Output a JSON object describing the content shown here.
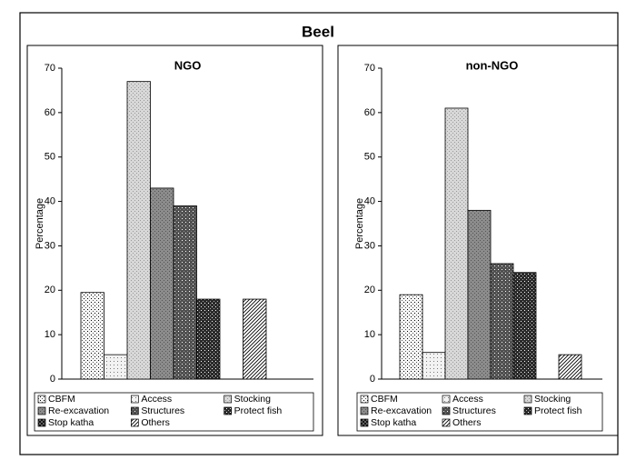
{
  "title": "Beel",
  "chart_data": [
    {
      "type": "bar",
      "title": "NGO",
      "ylabel": "Percentage",
      "ylim": [
        0,
        70
      ],
      "yticks": [
        0,
        10,
        20,
        30,
        40,
        50,
        60,
        70
      ],
      "series": [
        {
          "name": "CBFM",
          "color": "#f6f6f6",
          "values": [
            19.5
          ]
        },
        {
          "name": "Access",
          "color": "#f2f2f2",
          "values": [
            5.5
          ]
        },
        {
          "name": "Stocking",
          "color": "#d8d8d8",
          "values": [
            67
          ]
        },
        {
          "name": "Re-excavation",
          "color": "#8c8c8c",
          "values": [
            43
          ]
        },
        {
          "name": "Structures",
          "color": "#505050",
          "values": [
            39
          ]
        },
        {
          "name": "Protect fish",
          "color": "#2a2a2a",
          "values": [
            18
          ]
        },
        {
          "name": "Stop katha",
          "color": "#777777",
          "values": [
            0
          ]
        },
        {
          "name": "Others",
          "color": "#ffffff",
          "values": [
            18
          ]
        }
      ]
    },
    {
      "type": "bar",
      "title": "non-NGO",
      "ylabel": "Percentage",
      "ylim": [
        0,
        70
      ],
      "yticks": [
        0,
        10,
        20,
        30,
        40,
        50,
        60,
        70
      ],
      "series": [
        {
          "name": "CBFM",
          "color": "#f6f6f6",
          "values": [
            19
          ]
        },
        {
          "name": "Access",
          "color": "#f2f2f2",
          "values": [
            6
          ]
        },
        {
          "name": "Stocking",
          "color": "#d8d8d8",
          "values": [
            61
          ]
        },
        {
          "name": "Re-excavation",
          "color": "#8c8c8c",
          "values": [
            38
          ]
        },
        {
          "name": "Structures",
          "color": "#505050",
          "values": [
            26
          ]
        },
        {
          "name": "Protect fish",
          "color": "#2a2a2a",
          "values": [
            24
          ]
        },
        {
          "name": "Stop katha",
          "color": "#777777",
          "values": [
            0
          ]
        },
        {
          "name": "Others",
          "color": "#ffffff",
          "values": [
            5.5
          ]
        }
      ]
    }
  ]
}
